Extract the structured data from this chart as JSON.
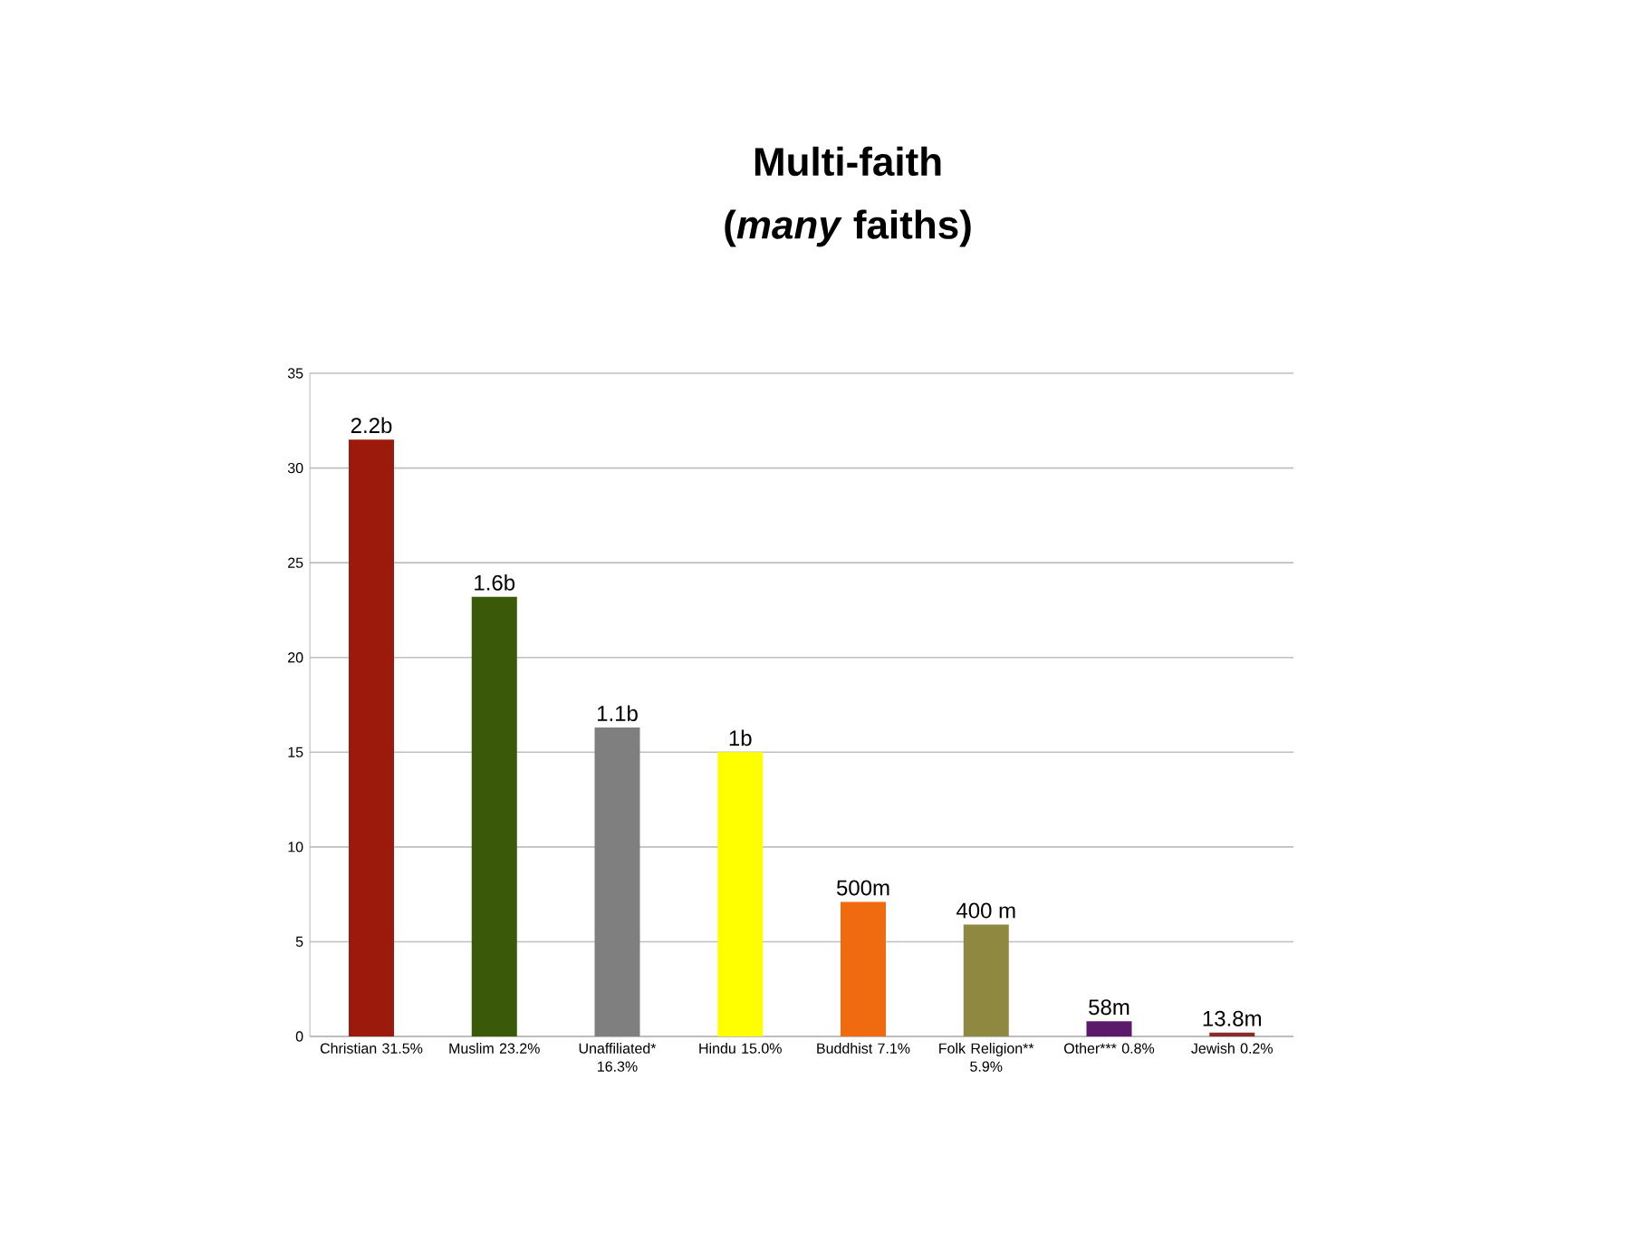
{
  "chart_data": {
    "type": "bar",
    "title": "Multi-faith",
    "subtitle": "(*many* faiths)",
    "categories": [
      "Christian 31.5%",
      "Muslim 23.2%",
      "Unaffiliated* 16.3%",
      "Hindu 15.0%",
      "Buddhist 7.1%",
      "Folk Religion** 5.9%",
      "Other*** 0.8%",
      "Jewish 0.2%"
    ],
    "values": [
      31.5,
      23.2,
      16.3,
      15.0,
      7.1,
      5.9,
      0.8,
      0.2
    ],
    "colors": [
      "#9b1a0c",
      "#3a5a0a",
      "#7f7f7f",
      "#ffff00",
      "#f06a10",
      "#8f8840",
      "#5c1a6a",
      "#8a2a2a"
    ],
    "annotations": [
      {
        "text": "2.2b",
        "x": "Christian 31.5%",
        "y": 31.5
      },
      {
        "text": "1.6b",
        "x": "Muslim 23.2%",
        "y": 23.2
      },
      {
        "text": "1.1b",
        "x": "Unaffiliated* 16.3%",
        "y": 16.3
      },
      {
        "text": "1b",
        "x": "Hindu 15.0%",
        "y": 15.0
      },
      {
        "text": "500m",
        "x": "Buddhist 7.1%",
        "y": 7.1
      },
      {
        "text": "400 m",
        "x": "Folk Religion** 5.9%",
        "y": 5.9
      },
      {
        "text": "58m",
        "x": "Other*** 0.8%",
        "y": 0.8
      },
      {
        "text": "13.8m",
        "x": "Jewish 0.2%",
        "y": 0.2
      }
    ],
    "ylim": [
      0,
      35
    ],
    "yticks": [
      0,
      5,
      10,
      15,
      20,
      25,
      30,
      35
    ],
    "grid": "y"
  }
}
